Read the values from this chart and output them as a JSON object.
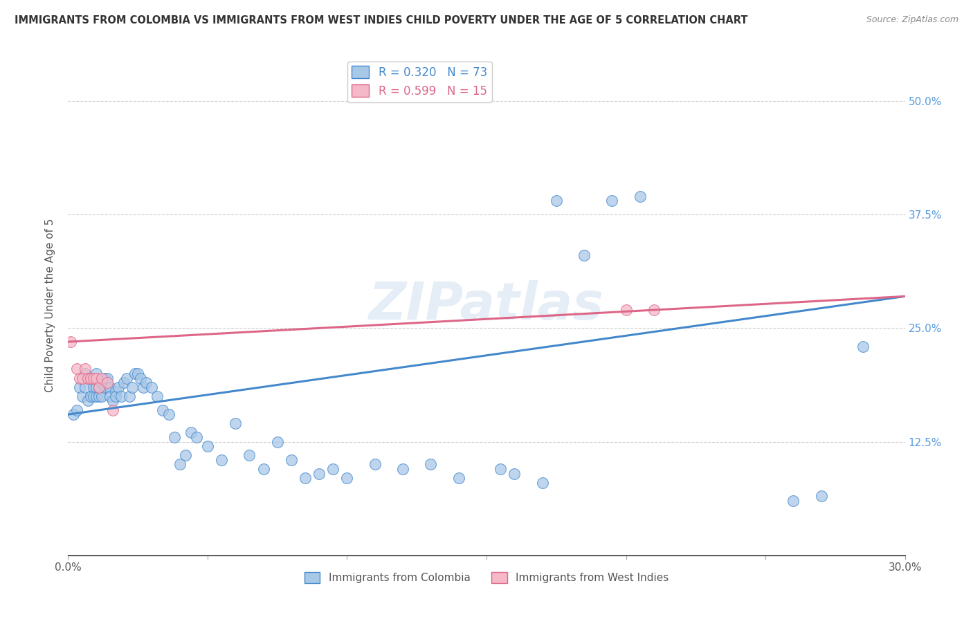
{
  "title": "IMMIGRANTS FROM COLOMBIA VS IMMIGRANTS FROM WEST INDIES CHILD POVERTY UNDER THE AGE OF 5 CORRELATION CHART",
  "source": "Source: ZipAtlas.com",
  "ylabel": "Child Poverty Under the Age of 5",
  "legend_colombia": "Immigrants from Colombia",
  "legend_west_indies": "Immigrants from West Indies",
  "R_colombia": 0.32,
  "N_colombia": 73,
  "R_west_indies": 0.599,
  "N_west_indies": 15,
  "xlim": [
    0.0,
    0.3
  ],
  "ylim": [
    0.0,
    0.55
  ],
  "xticks": [
    0.0,
    0.05,
    0.1,
    0.15,
    0.2,
    0.25,
    0.3
  ],
  "xtick_labels": [
    "0.0%",
    "",
    "",
    "",
    "",
    "",
    "30.0%"
  ],
  "ytick_positions": [
    0.0,
    0.125,
    0.25,
    0.375,
    0.5
  ],
  "ytick_labels": [
    "",
    "12.5%",
    "25.0%",
    "37.5%",
    "50.0%"
  ],
  "colombia_color": "#a8c8e8",
  "west_indies_color": "#f4b8c8",
  "colombia_line_color": "#4488cc",
  "west_indies_line_color": "#dd6688",
  "watermark": "ZIPatlas",
  "background_color": "#ffffff",
  "colombia_x": [
    0.002,
    0.003,
    0.004,
    0.005,
    0.006,
    0.006,
    0.007,
    0.007,
    0.008,
    0.008,
    0.009,
    0.009,
    0.01,
    0.01,
    0.01,
    0.011,
    0.011,
    0.012,
    0.012,
    0.013,
    0.013,
    0.014,
    0.014,
    0.015,
    0.015,
    0.016,
    0.017,
    0.017,
    0.018,
    0.019,
    0.02,
    0.021,
    0.022,
    0.023,
    0.024,
    0.025,
    0.026,
    0.027,
    0.028,
    0.03,
    0.032,
    0.034,
    0.036,
    0.038,
    0.04,
    0.042,
    0.044,
    0.046,
    0.05,
    0.055,
    0.06,
    0.065,
    0.07,
    0.075,
    0.08,
    0.085,
    0.09,
    0.095,
    0.1,
    0.11,
    0.12,
    0.13,
    0.14,
    0.155,
    0.16,
    0.17,
    0.175,
    0.185,
    0.195,
    0.205,
    0.26,
    0.27,
    0.285
  ],
  "colombia_y": [
    0.155,
    0.16,
    0.185,
    0.175,
    0.185,
    0.2,
    0.17,
    0.195,
    0.175,
    0.195,
    0.185,
    0.175,
    0.175,
    0.185,
    0.2,
    0.175,
    0.185,
    0.175,
    0.19,
    0.185,
    0.195,
    0.185,
    0.195,
    0.185,
    0.175,
    0.17,
    0.18,
    0.175,
    0.185,
    0.175,
    0.19,
    0.195,
    0.175,
    0.185,
    0.2,
    0.2,
    0.195,
    0.185,
    0.19,
    0.185,
    0.175,
    0.16,
    0.155,
    0.13,
    0.1,
    0.11,
    0.135,
    0.13,
    0.12,
    0.105,
    0.145,
    0.11,
    0.095,
    0.125,
    0.105,
    0.085,
    0.09,
    0.095,
    0.085,
    0.1,
    0.095,
    0.1,
    0.085,
    0.095,
    0.09,
    0.08,
    0.39,
    0.33,
    0.39,
    0.395,
    0.06,
    0.065,
    0.23
  ],
  "west_indies_x": [
    0.001,
    0.003,
    0.004,
    0.005,
    0.006,
    0.007,
    0.008,
    0.009,
    0.01,
    0.011,
    0.012,
    0.014,
    0.016,
    0.2,
    0.21
  ],
  "west_indies_y": [
    0.235,
    0.205,
    0.195,
    0.195,
    0.205,
    0.195,
    0.195,
    0.195,
    0.195,
    0.185,
    0.195,
    0.19,
    0.16,
    0.27,
    0.27
  ]
}
